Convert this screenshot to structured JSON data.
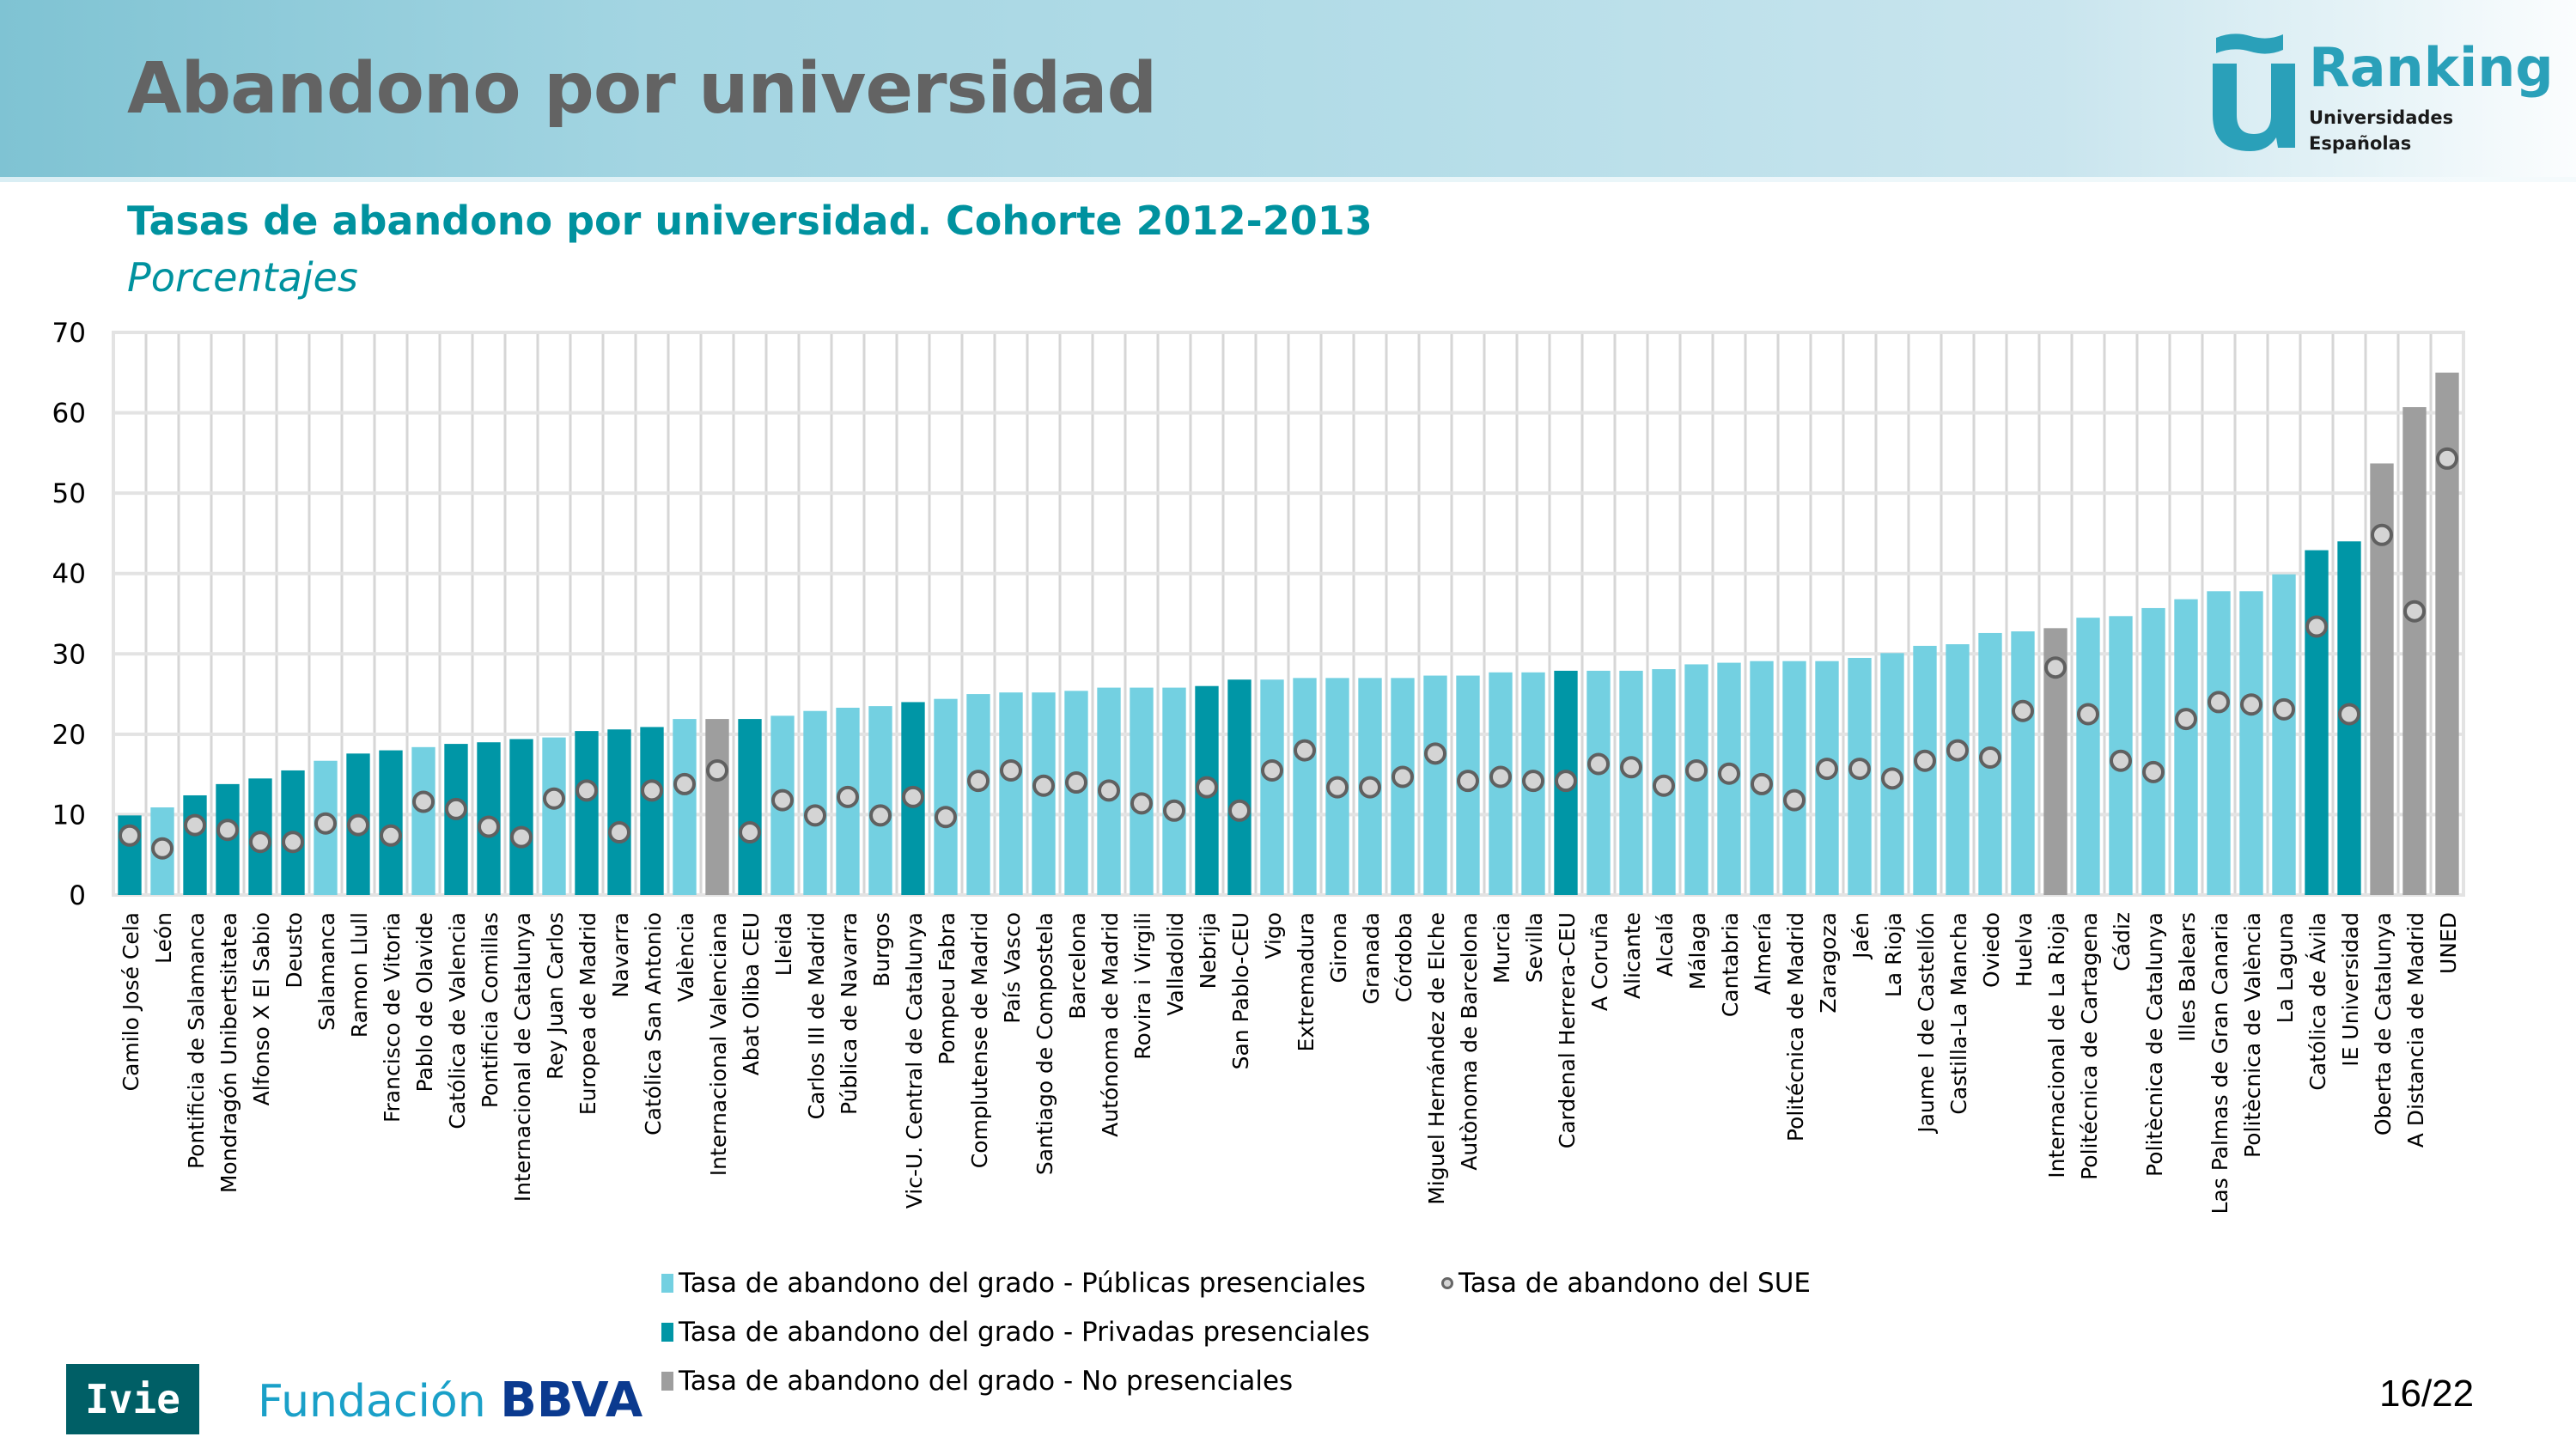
{
  "header": {
    "title": "Abandono por universidad",
    "logo": {
      "brand": "Ranking",
      "line1": "Universidades",
      "line2": "Españolas"
    }
  },
  "chart_heading": {
    "title": "Tasas de abandono por universidad. Cohorte 2012-2013",
    "subtitle": "Porcentajes"
  },
  "chart_data": {
    "type": "bar",
    "title": "Tasas de abandono por universidad. Cohorte 2012-2013",
    "subtitle": "Porcentajes",
    "xlabel": "",
    "ylabel": "",
    "ylim": [
      0,
      70
    ],
    "yticks": [
      0,
      10,
      20,
      30,
      40,
      50,
      60,
      70
    ],
    "grid": true,
    "colors": {
      "publica": "#73d0e1",
      "privada": "#0096a6",
      "nopresencial": "#9e9e9e",
      "sue_fill": "#d4d4d4",
      "sue_stroke": "#606060"
    },
    "legend": {
      "placement": "bottom",
      "items": [
        {
          "key": "publica",
          "label": "Tasa de abandono del grado - Públicas presenciales",
          "marker": "square"
        },
        {
          "key": "privada",
          "label": "Tasa de abandono del grado - Privadas presenciales",
          "marker": "square"
        },
        {
          "key": "nopresencial",
          "label": "Tasa de abandono del grado - No presenciales",
          "marker": "square"
        },
        {
          "key": "sue",
          "label": "Tasa de abandono del SUE",
          "marker": "circle"
        }
      ]
    },
    "categories": [
      "Camilo José Cela",
      "León",
      "Pontificia de Salamanca",
      "Mondragón Unibertsitatea",
      "Alfonso X El Sabio",
      "Deusto",
      "Salamanca",
      "Ramon Llull",
      "Francisco de Vitoria",
      "Pablo de Olavide",
      "Católica de Valencia",
      "Pontificia Comillas",
      "Internacional de Catalunya",
      "Rey Juan Carlos",
      "Europea de Madrid",
      "Navarra",
      "Católica San Antonio",
      "València",
      "Internacional Valenciana",
      "Abat Oliba CEU",
      "Lleida",
      "Carlos III de Madrid",
      "Pública de Navarra",
      "Burgos",
      "Vic-U. Central de Catalunya",
      "Pompeu Fabra",
      "Complutense de Madrid",
      "País Vasco",
      "Santiago de Compostela",
      "Barcelona",
      "Autónoma de Madrid",
      "Rovira i Virgili",
      "Valladolid",
      "Nebrija",
      "San Pablo-CEU",
      "Vigo",
      "Extremadura",
      "Girona",
      "Granada",
      "Córdoba",
      "Miguel Hernández de Elche",
      "Autònoma de Barcelona",
      "Murcia",
      "Sevilla",
      "Cardenal Herrera-CEU",
      "A Coruña",
      "Alicante",
      "Alcalá",
      "Málaga",
      "Cantabria",
      "Almería",
      "Politécnica de Madrid",
      "Zaragoza",
      "Jaén",
      "La Rioja",
      "Jaume I de Castellón",
      "Castilla-La Mancha",
      "Oviedo",
      "Huelva",
      "Internacional de La Rioja",
      "Politécnica de Cartagena",
      "Cádiz",
      "Politècnica de Catalunya",
      "Illes Balears",
      "Las Palmas de Gran Canaria",
      "Politècnica de València",
      "La Laguna",
      "Católica de Ávila",
      "IE Universidad",
      "Oberta de Catalunya",
      "A Distancia de Madrid",
      "UNED"
    ],
    "bar_type": [
      "privada",
      "publica",
      "privada",
      "privada",
      "privada",
      "privada",
      "publica",
      "privada",
      "privada",
      "publica",
      "privada",
      "privada",
      "privada",
      "publica",
      "privada",
      "privada",
      "privada",
      "publica",
      "nopresencial",
      "privada",
      "publica",
      "publica",
      "publica",
      "publica",
      "privada",
      "publica",
      "publica",
      "publica",
      "publica",
      "publica",
      "publica",
      "publica",
      "publica",
      "privada",
      "privada",
      "publica",
      "publica",
      "publica",
      "publica",
      "publica",
      "publica",
      "publica",
      "publica",
      "publica",
      "privada",
      "publica",
      "publica",
      "publica",
      "publica",
      "publica",
      "publica",
      "publica",
      "publica",
      "publica",
      "publica",
      "publica",
      "publica",
      "publica",
      "publica",
      "nopresencial",
      "publica",
      "publica",
      "publica",
      "publica",
      "publica",
      "publica",
      "publica",
      "privada",
      "privada",
      "nopresencial",
      "nopresencial",
      "nopresencial"
    ],
    "series": [
      {
        "name": "Tasa de abandono del grado",
        "type": "bar",
        "values": [
          9.9,
          10.9,
          12.4,
          13.8,
          14.5,
          15.5,
          16.7,
          17.6,
          18.0,
          18.4,
          18.8,
          19.0,
          19.4,
          19.6,
          20.4,
          20.6,
          20.9,
          21.9,
          21.9,
          21.9,
          22.3,
          22.9,
          23.3,
          23.5,
          24.0,
          24.4,
          25.0,
          25.2,
          25.2,
          25.4,
          25.8,
          25.8,
          25.8,
          26.0,
          26.8,
          26.8,
          27.0,
          27.0,
          27.0,
          27.0,
          27.3,
          27.3,
          27.7,
          27.7,
          27.9,
          27.9,
          27.9,
          28.1,
          28.7,
          28.9,
          29.1,
          29.1,
          29.1,
          29.5,
          30.1,
          31.0,
          31.2,
          32.6,
          32.8,
          33.2,
          34.5,
          34.7,
          35.7,
          36.8,
          37.8,
          37.8,
          39.9,
          42.9,
          44.0,
          53.7,
          60.7,
          65.0
        ]
      },
      {
        "name": "Tasa de abandono del SUE",
        "type": "scatter",
        "values": [
          7.4,
          5.8,
          8.7,
          8.1,
          6.6,
          6.6,
          8.9,
          8.7,
          7.4,
          11.6,
          10.7,
          8.5,
          7.2,
          12.0,
          13.0,
          7.8,
          13.0,
          13.8,
          15.5,
          7.8,
          11.8,
          9.9,
          12.2,
          9.9,
          12.2,
          9.7,
          14.2,
          15.5,
          13.6,
          14.0,
          13.0,
          11.4,
          10.5,
          13.4,
          10.5,
          15.5,
          18.0,
          13.4,
          13.4,
          14.7,
          17.6,
          14.2,
          14.7,
          14.2,
          14.2,
          16.3,
          15.9,
          13.6,
          15.5,
          15.1,
          13.8,
          11.8,
          15.7,
          15.7,
          14.5,
          16.7,
          18.0,
          17.1,
          22.9,
          28.3,
          22.5,
          16.7,
          15.3,
          21.9,
          24.0,
          23.7,
          23.1,
          33.4,
          22.5,
          44.8,
          35.3,
          54.3
        ]
      }
    ]
  },
  "footer": {
    "ivie": "Ivie",
    "fundacion": "Fundación",
    "bbva": "BBVA",
    "page": "16/22"
  }
}
